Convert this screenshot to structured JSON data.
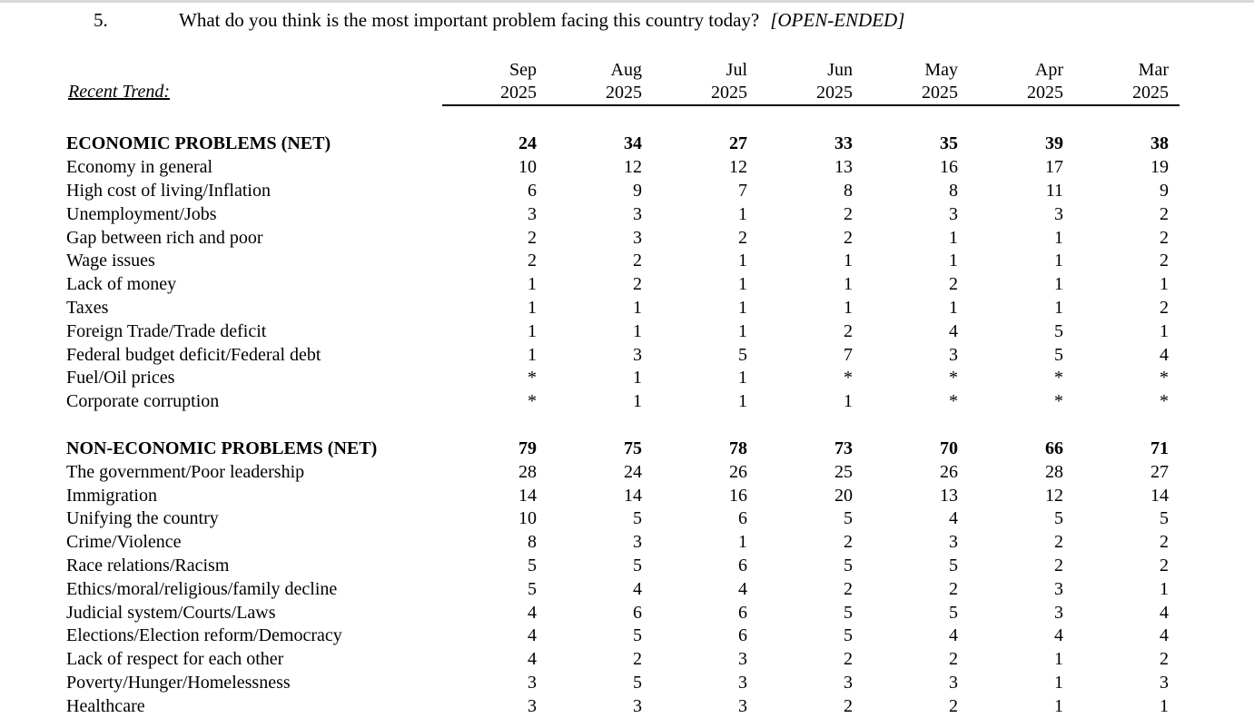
{
  "question": {
    "number": "5.",
    "text": "What do you think is the most important problem facing this country today?",
    "tag": "[OPEN-ENDED]"
  },
  "table": {
    "trend_label": "Recent Trend:",
    "columns": [
      {
        "month": "Sep",
        "year": "2025"
      },
      {
        "month": "Aug",
        "year": "2025"
      },
      {
        "month": "Jul",
        "year": "2025"
      },
      {
        "month": "Jun",
        "year": "2025"
      },
      {
        "month": "May",
        "year": "2025"
      },
      {
        "month": "Apr",
        "year": "2025"
      },
      {
        "month": "Mar",
        "year": "2025"
      }
    ],
    "sections": [
      {
        "rows": [
          {
            "label": "ECONOMIC PROBLEMS (NET)",
            "bold": true,
            "values": [
              "24",
              "34",
              "27",
              "33",
              "35",
              "39",
              "38"
            ]
          },
          {
            "label": "Economy in general",
            "bold": false,
            "values": [
              "10",
              "12",
              "12",
              "13",
              "16",
              "17",
              "19"
            ]
          },
          {
            "label": "High cost of living/Inflation",
            "bold": false,
            "values": [
              "6",
              "9",
              "7",
              "8",
              "8",
              "11",
              "9"
            ]
          },
          {
            "label": "Unemployment/Jobs",
            "bold": false,
            "values": [
              "3",
              "3",
              "1",
              "2",
              "3",
              "3",
              "2"
            ]
          },
          {
            "label": "Gap between rich and poor",
            "bold": false,
            "values": [
              "2",
              "3",
              "2",
              "2",
              "1",
              "1",
              "2"
            ]
          },
          {
            "label": "Wage issues",
            "bold": false,
            "values": [
              "2",
              "2",
              "1",
              "1",
              "1",
              "1",
              "2"
            ]
          },
          {
            "label": "Lack of money",
            "bold": false,
            "values": [
              "1",
              "2",
              "1",
              "1",
              "2",
              "1",
              "1"
            ]
          },
          {
            "label": "Taxes",
            "bold": false,
            "values": [
              "1",
              "1",
              "1",
              "1",
              "1",
              "1",
              "2"
            ]
          },
          {
            "label": "Foreign Trade/Trade deficit",
            "bold": false,
            "values": [
              "1",
              "1",
              "1",
              "2",
              "4",
              "5",
              "1"
            ]
          },
          {
            "label": "Federal budget deficit/Federal debt",
            "bold": false,
            "values": [
              "1",
              "3",
              "5",
              "7",
              "3",
              "5",
              "4"
            ]
          },
          {
            "label": "Fuel/Oil prices",
            "bold": false,
            "values": [
              "*",
              "1",
              "1",
              "*",
              "*",
              "*",
              "*"
            ]
          },
          {
            "label": "Corporate corruption",
            "bold": false,
            "values": [
              "*",
              "1",
              "1",
              "1",
              "*",
              "*",
              "*"
            ]
          }
        ]
      },
      {
        "rows": [
          {
            "label": "NON-ECONOMIC PROBLEMS (NET)",
            "bold": true,
            "values": [
              "79",
              "75",
              "78",
              "73",
              "70",
              "66",
              "71"
            ]
          },
          {
            "label": "The government/Poor leadership",
            "bold": false,
            "values": [
              "28",
              "24",
              "26",
              "25",
              "26",
              "28",
              "27"
            ]
          },
          {
            "label": "Immigration",
            "bold": false,
            "values": [
              "14",
              "14",
              "16",
              "20",
              "13",
              "12",
              "14"
            ]
          },
          {
            "label": "Unifying the country",
            "bold": false,
            "values": [
              "10",
              "5",
              "6",
              "5",
              "4",
              "5",
              "5"
            ]
          },
          {
            "label": "Crime/Violence",
            "bold": false,
            "values": [
              "8",
              "3",
              "1",
              "2",
              "3",
              "2",
              "2"
            ]
          },
          {
            "label": "Race relations/Racism",
            "bold": false,
            "values": [
              "5",
              "5",
              "6",
              "5",
              "5",
              "2",
              "2"
            ]
          },
          {
            "label": "Ethics/moral/religious/family decline",
            "bold": false,
            "values": [
              "5",
              "4",
              "4",
              "2",
              "2",
              "3",
              "1"
            ]
          },
          {
            "label": "Judicial system/Courts/Laws",
            "bold": false,
            "values": [
              "4",
              "6",
              "6",
              "5",
              "5",
              "3",
              "4"
            ]
          },
          {
            "label": "Elections/Election reform/Democracy",
            "bold": false,
            "values": [
              "4",
              "5",
              "6",
              "5",
              "4",
              "4",
              "4"
            ]
          },
          {
            "label": "Lack of respect for each other",
            "bold": false,
            "values": [
              "4",
              "2",
              "3",
              "2",
              "2",
              "1",
              "2"
            ]
          },
          {
            "label": "Poverty/Hunger/Homelessness",
            "bold": false,
            "values": [
              "3",
              "5",
              "3",
              "3",
              "3",
              "1",
              "3"
            ]
          },
          {
            "label": "Healthcare",
            "bold": false,
            "values": [
              "3",
              "3",
              "3",
              "2",
              "2",
              "1",
              "1"
            ]
          }
        ]
      }
    ]
  },
  "colors": {
    "text": "#000000",
    "background": "#ffffff",
    "top_edge": "#d9d9d9",
    "header_rule": "#000000"
  }
}
